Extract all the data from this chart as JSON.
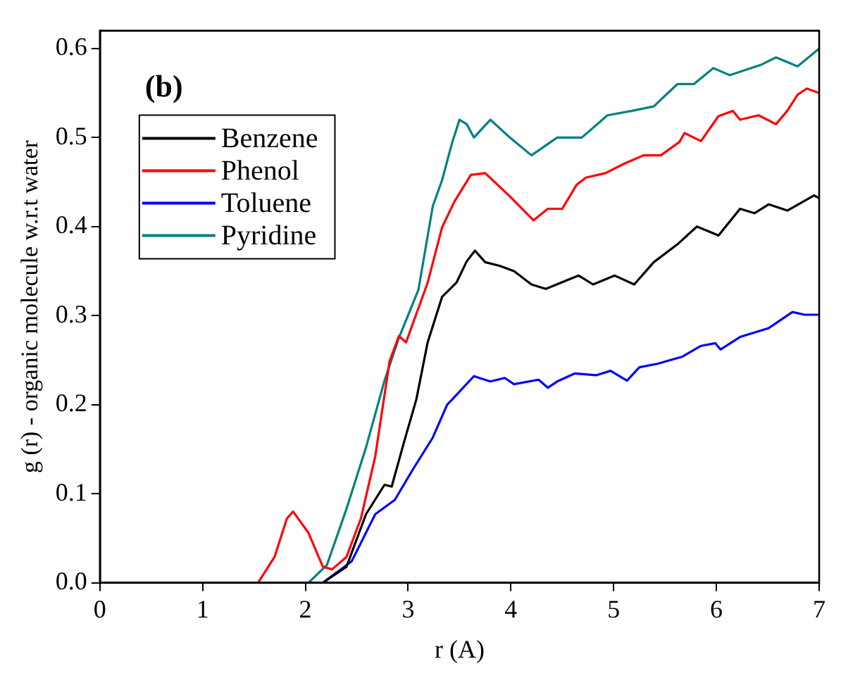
{
  "chart_data": {
    "type": "line",
    "xlabel": "r (A)",
    "ylabel": "g (r) - organic molecule w.r.t water",
    "annotations": [
      "(b)"
    ],
    "xlim": [
      0,
      7
    ],
    "xticks": [
      0,
      1,
      2,
      3,
      4,
      5,
      6,
      7
    ],
    "ylim": [
      0,
      0.62
    ],
    "yticks": [
      {
        "value": 0,
        "label": "0.0"
      },
      {
        "value": 0.1,
        "label": "0.1"
      },
      {
        "value": 0.2,
        "label": "0.2"
      },
      {
        "value": 0.3,
        "label": "0.3"
      },
      {
        "value": 0.4,
        "label": "0.4"
      },
      {
        "value": 0.5,
        "label": "0.5"
      },
      {
        "value": 0.6,
        "label": "0.6"
      }
    ],
    "grid": false,
    "legend": "top left",
    "marker": "none",
    "line_style": "solid",
    "series": [
      {
        "name": "Benzene",
        "color": "#000000",
        "x": [
          0,
          2.17,
          2.4,
          2.59,
          2.77,
          2.84,
          2.96,
          3.08,
          3.19,
          3.33,
          3.47,
          3.57,
          3.65,
          3.75,
          3.89,
          4.03,
          4.2,
          4.34,
          4.55,
          4.66,
          4.8,
          5.01,
          5.2,
          5.39,
          5.62,
          5.81,
          6.02,
          6.23,
          6.37,
          6.51,
          6.69,
          6.95,
          7.0
        ],
        "values": [
          0,
          0,
          0.018,
          0.077,
          0.11,
          0.108,
          0.158,
          0.206,
          0.27,
          0.321,
          0.337,
          0.361,
          0.373,
          0.36,
          0.356,
          0.35,
          0.335,
          0.33,
          0.34,
          0.345,
          0.335,
          0.345,
          0.335,
          0.36,
          0.38,
          0.4,
          0.39,
          0.42,
          0.415,
          0.425,
          0.418,
          0.435,
          0.432
        ]
      },
      {
        "name": "Phenol",
        "color": "#ff0000",
        "x": [
          0,
          1.54,
          1.7,
          1.82,
          1.88,
          2.03,
          2.17,
          2.26,
          2.4,
          2.54,
          2.68,
          2.82,
          2.91,
          2.98,
          3.08,
          3.19,
          3.33,
          3.45,
          3.61,
          3.75,
          3.99,
          4.22,
          4.36,
          4.5,
          4.64,
          4.73,
          4.92,
          5.11,
          5.29,
          5.46,
          5.64,
          5.69,
          5.85,
          6.02,
          6.16,
          6.23,
          6.41,
          6.58,
          6.69,
          6.79,
          6.88,
          7.0
        ],
        "values": [
          0,
          0,
          0.029,
          0.072,
          0.08,
          0.056,
          0.018,
          0.015,
          0.029,
          0.072,
          0.142,
          0.249,
          0.277,
          0.27,
          0.302,
          0.337,
          0.399,
          0.428,
          0.458,
          0.46,
          0.434,
          0.407,
          0.42,
          0.42,
          0.447,
          0.455,
          0.46,
          0.471,
          0.48,
          0.48,
          0.495,
          0.505,
          0.496,
          0.524,
          0.53,
          0.52,
          0.525,
          0.515,
          0.53,
          0.548,
          0.555,
          0.55
        ]
      },
      {
        "name": "Toluene",
        "color": "#0000ff",
        "x": [
          0,
          2.17,
          2.45,
          2.68,
          2.87,
          3.05,
          3.24,
          3.38,
          3.43,
          3.64,
          3.8,
          3.94,
          4.03,
          4.27,
          4.36,
          4.45,
          4.62,
          4.83,
          4.97,
          5.13,
          5.25,
          5.43,
          5.67,
          5.85,
          5.99,
          6.04,
          6.23,
          6.51,
          6.74,
          6.86,
          7.0
        ],
        "values": [
          0,
          0,
          0.024,
          0.077,
          0.093,
          0.128,
          0.163,
          0.2,
          0.206,
          0.232,
          0.226,
          0.23,
          0.223,
          0.228,
          0.219,
          0.226,
          0.235,
          0.233,
          0.238,
          0.227,
          0.242,
          0.246,
          0.254,
          0.266,
          0.269,
          0.262,
          0.276,
          0.286,
          0.304,
          0.301,
          0.301
        ]
      },
      {
        "name": "Pyridine",
        "color": "#008080",
        "x": [
          0,
          2.03,
          2.21,
          2.4,
          2.59,
          2.77,
          2.91,
          3.1,
          3.24,
          3.33,
          3.43,
          3.5,
          3.57,
          3.64,
          3.8,
          3.99,
          4.2,
          4.45,
          4.69,
          4.94,
          5.18,
          5.39,
          5.62,
          5.78,
          5.97,
          6.13,
          6.44,
          6.58,
          6.79,
          7.0
        ],
        "values": [
          0,
          0,
          0.02,
          0.083,
          0.152,
          0.227,
          0.275,
          0.329,
          0.423,
          0.452,
          0.495,
          0.52,
          0.515,
          0.5,
          0.52,
          0.5,
          0.48,
          0.5,
          0.5,
          0.525,
          0.53,
          0.535,
          0.56,
          0.56,
          0.578,
          0.57,
          0.582,
          0.59,
          0.58,
          0.6
        ]
      }
    ]
  }
}
